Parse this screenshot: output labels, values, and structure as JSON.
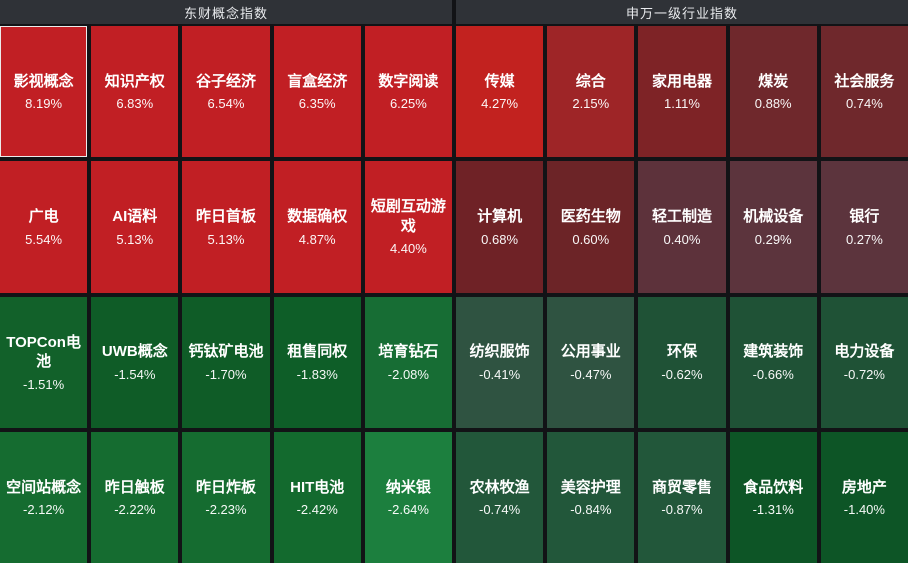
{
  "header": {
    "left_title": "东财概念指数",
    "right_title": "申万一级行业指数"
  },
  "grid": {
    "selected": "影视概念",
    "cells": [
      {
        "name": "影视概念",
        "change": "8.19%",
        "color": "#c11f24"
      },
      {
        "name": "知识产权",
        "change": "6.83%",
        "color": "#c11f24"
      },
      {
        "name": "谷子经济",
        "change": "6.54%",
        "color": "#c11f24"
      },
      {
        "name": "盲盒经济",
        "change": "6.35%",
        "color": "#c11f24"
      },
      {
        "name": "数字阅读",
        "change": "6.25%",
        "color": "#c11f24"
      },
      {
        "name": "传媒",
        "change": "4.27%",
        "color": "#c2221f"
      },
      {
        "name": "综合",
        "change": "2.15%",
        "color": "#9e2527"
      },
      {
        "name": "家用电器",
        "change": "1.11%",
        "color": "#7e2326"
      },
      {
        "name": "煤炭",
        "change": "0.88%",
        "color": "#6f282c"
      },
      {
        "name": "社会服务",
        "change": "0.74%",
        "color": "#6f282c"
      },
      {
        "name": "广电",
        "change": "5.54%",
        "color": "#c11f24"
      },
      {
        "name": "AI语料",
        "change": "5.13%",
        "color": "#c11f24"
      },
      {
        "name": "昨日首板",
        "change": "5.13%",
        "color": "#c11f24"
      },
      {
        "name": "数据确权",
        "change": "4.87%",
        "color": "#c11f24"
      },
      {
        "name": "短剧互动游戏",
        "change": "4.40%",
        "color": "#c11f24"
      },
      {
        "name": "计算机",
        "change": "0.68%",
        "color": "#6f2226"
      },
      {
        "name": "医药生物",
        "change": "0.60%",
        "color": "#6c2427"
      },
      {
        "name": "轻工制造",
        "change": "0.40%",
        "color": "#5d323b"
      },
      {
        "name": "机械设备",
        "change": "0.29%",
        "color": "#5c343d"
      },
      {
        "name": "银行",
        "change": "0.27%",
        "color": "#5c343d"
      },
      {
        "name": "TOPCon电池",
        "change": "-1.51%",
        "color": "#12612a"
      },
      {
        "name": "UWB概念",
        "change": "-1.54%",
        "color": "#0f5c27"
      },
      {
        "name": "钙钛矿电池",
        "change": "-1.70%",
        "color": "#0f5c27"
      },
      {
        "name": "租售同权",
        "change": "-1.83%",
        "color": "#0e5e28"
      },
      {
        "name": "培育钻石",
        "change": "-2.08%",
        "color": "#176d34"
      },
      {
        "name": "纺织服饰",
        "change": "-0.41%",
        "color": "#2f5341"
      },
      {
        "name": "公用事业",
        "change": "-0.47%",
        "color": "#2f5341"
      },
      {
        "name": "环保",
        "change": "-0.62%",
        "color": "#1f5236"
      },
      {
        "name": "建筑装饰",
        "change": "-0.66%",
        "color": "#1f5236"
      },
      {
        "name": "电力设备",
        "change": "-0.72%",
        "color": "#1f5236"
      },
      {
        "name": "空间站概念",
        "change": "-2.12%",
        "color": "#156c30"
      },
      {
        "name": "昨日触板",
        "change": "-2.22%",
        "color": "#156c30"
      },
      {
        "name": "昨日炸板",
        "change": "-2.23%",
        "color": "#156c30"
      },
      {
        "name": "HIT电池",
        "change": "-2.42%",
        "color": "#136a2e"
      },
      {
        "name": "纳米银",
        "change": "-2.64%",
        "color": "#1c7f3e"
      },
      {
        "name": "农林牧渔",
        "change": "-0.74%",
        "color": "#22573a"
      },
      {
        "name": "美容护理",
        "change": "-0.84%",
        "color": "#22573a"
      },
      {
        "name": "商贸零售",
        "change": "-0.87%",
        "color": "#22573a"
      },
      {
        "name": "食品饮料",
        "change": "-1.31%",
        "color": "#0d5526"
      },
      {
        "name": "房地产",
        "change": "-1.40%",
        "color": "#0d5526"
      }
    ]
  },
  "chart_data": {
    "type": "heatmap",
    "value_unit": "%",
    "color_rule": "red = gain, green = loss (China market convention); brightness scales with |change|",
    "sections": [
      {
        "title": "东财概念指数",
        "items": [
          [
            "影视概念",
            8.19
          ],
          [
            "知识产权",
            6.83
          ],
          [
            "谷子经济",
            6.54
          ],
          [
            "盲盒经济",
            6.35
          ],
          [
            "数字阅读",
            6.25
          ],
          [
            "广电",
            5.54
          ],
          [
            "AI语料",
            5.13
          ],
          [
            "昨日首板",
            5.13
          ],
          [
            "数据确权",
            4.87
          ],
          [
            "短剧互动游戏",
            4.4
          ],
          [
            "TOPCon电池",
            -1.51
          ],
          [
            "UWB概念",
            -1.54
          ],
          [
            "钙钛矿电池",
            -1.7
          ],
          [
            "租售同权",
            -1.83
          ],
          [
            "培育钻石",
            -2.08
          ],
          [
            "空间站概念",
            -2.12
          ],
          [
            "昨日触板",
            -2.22
          ],
          [
            "昨日炸板",
            -2.23
          ],
          [
            "HIT电池",
            -2.42
          ],
          [
            "纳米银",
            -2.64
          ]
        ]
      },
      {
        "title": "申万一级行业指数",
        "items": [
          [
            "传媒",
            4.27
          ],
          [
            "综合",
            2.15
          ],
          [
            "家用电器",
            1.11
          ],
          [
            "煤炭",
            0.88
          ],
          [
            "社会服务",
            0.74
          ],
          [
            "计算机",
            0.68
          ],
          [
            "医药生物",
            0.6
          ],
          [
            "轻工制造",
            0.4
          ],
          [
            "机械设备",
            0.29
          ],
          [
            "银行",
            0.27
          ],
          [
            "纺织服饰",
            -0.41
          ],
          [
            "公用事业",
            -0.47
          ],
          [
            "环保",
            -0.62
          ],
          [
            "建筑装饰",
            -0.66
          ],
          [
            "电力设备",
            -0.72
          ],
          [
            "农林牧渔",
            -0.74
          ],
          [
            "美容护理",
            -0.84
          ],
          [
            "商贸零售",
            -0.87
          ],
          [
            "食品饮料",
            -1.31
          ],
          [
            "房地产",
            -1.4
          ]
        ]
      }
    ]
  }
}
